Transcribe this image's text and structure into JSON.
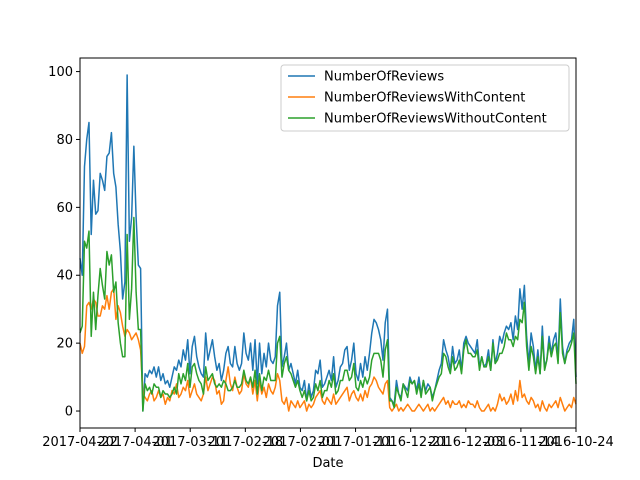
{
  "chart_data": {
    "type": "line",
    "title": "",
    "xlabel": "Date",
    "ylabel": "",
    "ylim": [
      -5,
      104
    ],
    "y_ticks": [
      0,
      20,
      40,
      60,
      80,
      100
    ],
    "x_tick_labels": [
      "2017-04-22",
      "2017-04-01",
      "2017-03-11",
      "2017-02-18",
      "2017-02-01",
      "2017-01-11",
      "2016-12-21",
      "2016-12-03",
      "2016-11-14",
      "2016-10-24"
    ],
    "grid": false,
    "legend_position": "top-right",
    "series": [
      {
        "name": "NumberOfReviews",
        "color": "#1f77b4",
        "values": [
          45,
          40,
          72,
          80,
          85,
          52,
          68,
          58,
          59,
          70,
          68,
          65,
          75,
          76,
          82,
          70,
          66,
          55,
          47,
          33,
          38,
          99,
          50,
          57,
          78,
          57,
          43,
          42,
          0,
          11,
          10,
          12,
          11,
          13,
          10,
          13,
          9,
          11,
          8,
          9,
          7,
          10,
          13,
          12,
          15,
          13,
          18,
          15,
          21,
          11,
          19,
          22,
          16,
          13,
          11,
          10,
          23,
          15,
          18,
          21,
          16,
          12,
          14,
          9,
          12,
          17,
          19,
          14,
          13,
          19,
          14,
          12,
          14,
          23,
          17,
          15,
          20,
          12,
          21,
          8,
          20,
          11,
          17,
          13,
          20,
          15,
          14,
          16,
          31,
          35,
          13,
          16,
          20,
          12,
          14,
          11,
          8,
          12,
          7,
          6,
          9,
          3,
          8,
          4,
          6,
          12,
          11,
          15,
          7,
          8,
          10,
          12,
          9,
          16,
          7,
          9,
          13,
          14,
          18,
          19,
          12,
          15,
          20,
          11,
          9,
          14,
          10,
          16,
          12,
          17,
          23,
          27,
          26,
          24,
          21,
          15,
          26,
          30,
          4,
          3,
          2,
          9,
          5,
          4,
          8,
          7,
          6,
          10,
          8,
          9,
          6,
          10,
          5,
          9,
          6,
          8,
          7,
          4,
          6,
          9,
          12,
          14,
          21,
          18,
          16,
          12,
          19,
          14,
          15,
          18,
          12,
          20,
          22,
          20,
          19,
          18,
          17,
          21,
          13,
          16,
          13,
          14,
          18,
          12,
          21,
          14,
          17,
          22,
          20,
          23,
          25,
          24,
          26,
          21,
          28,
          24,
          36,
          30,
          37,
          22,
          14,
          23,
          19,
          12,
          18,
          11,
          25,
          13,
          15,
          22,
          17,
          21,
          23,
          15,
          33,
          19,
          14,
          18,
          20,
          21,
          27,
          10
        ]
      },
      {
        "name": "NumberOfReviewsWithContent",
        "color": "#ff7f0e",
        "values": [
          20,
          17,
          19,
          31,
          32,
          30,
          33,
          32,
          28,
          28,
          31,
          30,
          34,
          30,
          35,
          36,
          27,
          31,
          29,
          25,
          22,
          24,
          23,
          21,
          22,
          23,
          21,
          18,
          5,
          4,
          3,
          5,
          6,
          3,
          4,
          6,
          4,
          5,
          2,
          4,
          3,
          6,
          5,
          8,
          4,
          5,
          7,
          6,
          9,
          4,
          6,
          8,
          5,
          4,
          3,
          5,
          10,
          6,
          8,
          10,
          9,
          5,
          6,
          2,
          3,
          9,
          13,
          8,
          6,
          10,
          7,
          5,
          6,
          11,
          8,
          7,
          10,
          5,
          9,
          3,
          9,
          5,
          7,
          4,
          8,
          6,
          5,
          7,
          11,
          9,
          3,
          2,
          4,
          0,
          3,
          2,
          1,
          3,
          1,
          2,
          3,
          0,
          2,
          1,
          2,
          4,
          5,
          6,
          3,
          2,
          4,
          3,
          2,
          5,
          2,
          3,
          4,
          5,
          6,
          7,
          3,
          5,
          6,
          4,
          3,
          5,
          3,
          6,
          4,
          7,
          8,
          10,
          9,
          7,
          6,
          5,
          8,
          9,
          1,
          0,
          1,
          2,
          0,
          1,
          0,
          1,
          2,
          1,
          0,
          0,
          1,
          2,
          1,
          0,
          1,
          2,
          0,
          1,
          0,
          1,
          2,
          3,
          4,
          2,
          3,
          1,
          3,
          2,
          2,
          3,
          1,
          2,
          1,
          3,
          2,
          2,
          1,
          3,
          1,
          0,
          0,
          1,
          2,
          0,
          1,
          0,
          2,
          5,
          3,
          4,
          2,
          3,
          5,
          2,
          6,
          3,
          9,
          4,
          5,
          3,
          2,
          4,
          3,
          1,
          2,
          0,
          3,
          1,
          0,
          2,
          1,
          2,
          3,
          1,
          4,
          2,
          0,
          1,
          2,
          1,
          4,
          2
        ]
      },
      {
        "name": "NumberOfReviewsWithoutContent",
        "color": "#2ca02c",
        "values": [
          23,
          25,
          50,
          48,
          53,
          22,
          35,
          24,
          34,
          42,
          37,
          33,
          47,
          43,
          46,
          35,
          38,
          26,
          20,
          16,
          16,
          52,
          27,
          36,
          57,
          35,
          24,
          24,
          0,
          8,
          6,
          7,
          5,
          8,
          7,
          7,
          4,
          6,
          5,
          5,
          4,
          5,
          7,
          5,
          11,
          8,
          11,
          9,
          14,
          7,
          13,
          14,
          11,
          9,
          8,
          5,
          13,
          9,
          10,
          11,
          8,
          7,
          8,
          7,
          9,
          8,
          6,
          6,
          7,
          9,
          7,
          7,
          8,
          12,
          9,
          8,
          10,
          7,
          12,
          5,
          11,
          6,
          10,
          9,
          12,
          9,
          9,
          9,
          20,
          22,
          10,
          14,
          16,
          12,
          11,
          9,
          7,
          9,
          6,
          4,
          6,
          3,
          6,
          3,
          4,
          8,
          6,
          9,
          4,
          6,
          6,
          9,
          7,
          11,
          5,
          6,
          9,
          9,
          12,
          12,
          9,
          10,
          14,
          7,
          6,
          9,
          7,
          10,
          8,
          10,
          15,
          17,
          17,
          17,
          15,
          10,
          18,
          21,
          3,
          3,
          1,
          7,
          5,
          3,
          8,
          6,
          4,
          9,
          8,
          9,
          5,
          8,
          4,
          9,
          5,
          6,
          7,
          3,
          6,
          8,
          10,
          11,
          17,
          16,
          13,
          11,
          16,
          12,
          13,
          15,
          11,
          18,
          21,
          17,
          17,
          16,
          16,
          18,
          12,
          16,
          13,
          13,
          16,
          12,
          20,
          14,
          15,
          17,
          17,
          19,
          23,
          21,
          21,
          19,
          22,
          21,
          27,
          26,
          32,
          19,
          12,
          19,
          16,
          11,
          16,
          11,
          22,
          12,
          15,
          20,
          16,
          19,
          20,
          14,
          29,
          17,
          14,
          17,
          18,
          20,
          23,
          8
        ]
      }
    ]
  }
}
